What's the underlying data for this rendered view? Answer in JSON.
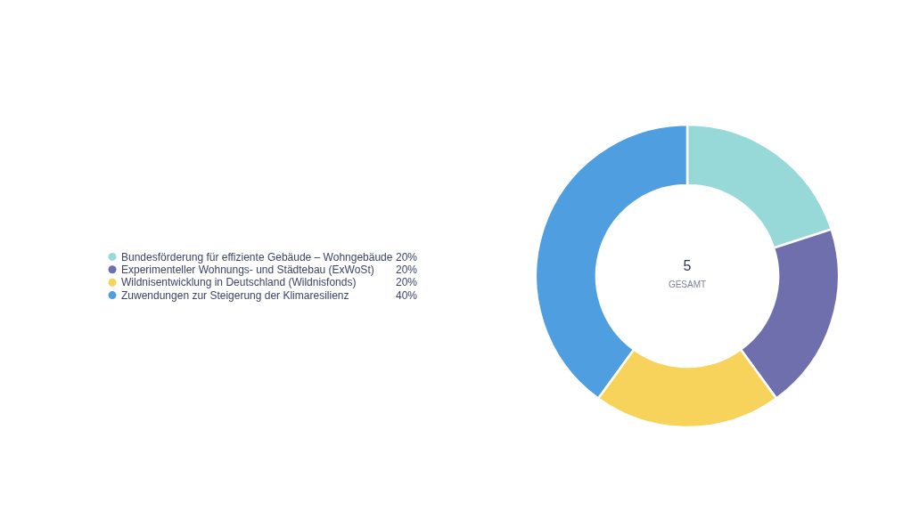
{
  "chart_data": {
    "type": "donut",
    "categories": [
      "Bundesförderung für effiziente Gebäude – Wohngebäude",
      "Experimenteller Wohnungs- und Städtebau (ExWoSt)",
      "Wildnisentwicklung in Deutschland (Wildnisfonds)",
      "Zuwendungen zur Steigerung der Klimaresilienz"
    ],
    "values": [
      20,
      20,
      20,
      40
    ],
    "value_labels": [
      "20%",
      "20%",
      "20%",
      "40%"
    ],
    "colors": [
      "#97d9d9",
      "#6f6fad",
      "#f7d35c",
      "#4f9ee0"
    ],
    "annotations": [
      "5",
      "GESAMT"
    ],
    "legend": "left"
  }
}
